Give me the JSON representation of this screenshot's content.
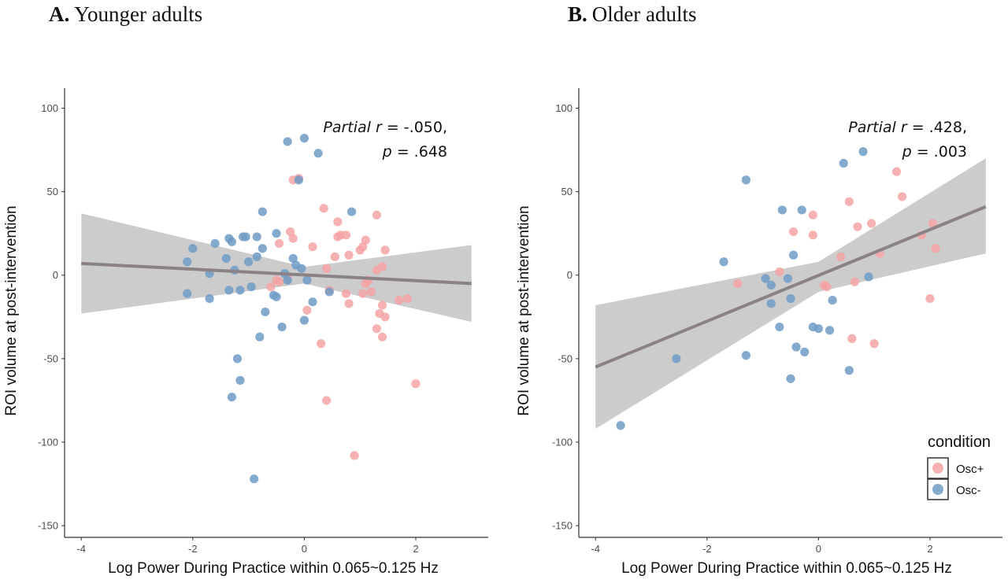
{
  "chart_data": [
    {
      "type": "scatter",
      "panel_letter": "A.",
      "title": "Younger adults",
      "xlabel": "Log Power During Practice within 0.065~0.125 Hz",
      "ylabel": "ROI volume at post-intervention",
      "xlim": [
        -4.3,
        3.3
      ],
      "ylim": [
        -157,
        112
      ],
      "xticks": [
        -4,
        -2,
        0,
        2
      ],
      "xtick_labels": [
        "-4",
        "-2",
        "0",
        "2"
      ],
      "yticks": [
        100,
        50,
        0,
        -50,
        -100,
        -150
      ],
      "ytick_labels": [
        "100",
        "50",
        "0",
        "-50",
        "-100",
        "-150"
      ],
      "grid": false,
      "annotation": {
        "stat_italic": "Partial",
        "r_italic": "r",
        "r_text": " = -.050,",
        "p_italic": "p",
        "p_text": " = .648"
      },
      "fit": {
        "x0": -4,
        "y0": 7,
        "x1": 3,
        "y1": -5,
        "ci_lower": [
          -23,
          -5,
          -28
        ],
        "ci_upper": [
          37,
          5,
          18
        ],
        "ci_x": [
          -4,
          0,
          3
        ]
      },
      "series": [
        {
          "name": "Osc+",
          "color": "#f4a3a5",
          "points": [
            [
              -0.2,
              57
            ],
            [
              -0.1,
              58
            ],
            [
              -0.25,
              26
            ],
            [
              -0.2,
              22
            ],
            [
              -0.45,
              19
            ],
            [
              0.35,
              40
            ],
            [
              0.6,
              32
            ],
            [
              0.6,
              23
            ],
            [
              0.65,
              24
            ],
            [
              0.75,
              24
            ],
            [
              0.8,
              12
            ],
            [
              0.55,
              11
            ],
            [
              1.0,
              15
            ],
            [
              1.1,
              21
            ],
            [
              1.05,
              17
            ],
            [
              1.3,
              36
            ],
            [
              1.45,
              15
            ],
            [
              1.3,
              3
            ],
            [
              1.4,
              5
            ],
            [
              1.2,
              -10
            ],
            [
              1.15,
              -3
            ],
            [
              1.1,
              -5
            ],
            [
              1.05,
              -11
            ],
            [
              0.75,
              -11
            ],
            [
              0.8,
              -17
            ],
            [
              1.4,
              -18
            ],
            [
              1.35,
              -23
            ],
            [
              1.45,
              -25
            ],
            [
              1.3,
              -32
            ],
            [
              1.4,
              -37
            ],
            [
              1.7,
              -15
            ],
            [
              1.85,
              -14
            ],
            [
              0.05,
              -21
            ],
            [
              0.3,
              -41
            ],
            [
              0.4,
              -75
            ],
            [
              0.9,
              -108
            ],
            [
              2.0,
              -65
            ],
            [
              -0.5,
              -3
            ],
            [
              -0.45,
              -4
            ],
            [
              -0.6,
              -7
            ],
            [
              0.45,
              -9
            ],
            [
              0.4,
              4
            ],
            [
              0.15,
              17
            ],
            [
              -0.3,
              -1
            ]
          ]
        },
        {
          "name": "Osc-",
          "color": "#6f9bc6",
          "points": [
            [
              -0.3,
              80
            ],
            [
              0.0,
              82
            ],
            [
              0.25,
              73
            ],
            [
              -0.1,
              57
            ],
            [
              0.85,
              38
            ],
            [
              -0.75,
              38
            ],
            [
              -1.35,
              22
            ],
            [
              -1.3,
              20
            ],
            [
              -1.1,
              23
            ],
            [
              -1.05,
              23
            ],
            [
              -0.85,
              23
            ],
            [
              -1.6,
              19
            ],
            [
              -2.0,
              16
            ],
            [
              -0.75,
              16
            ],
            [
              -0.5,
              25
            ],
            [
              -1.4,
              10
            ],
            [
              -1.0,
              8
            ],
            [
              -0.85,
              11
            ],
            [
              -0.2,
              10
            ],
            [
              -2.1,
              8
            ],
            [
              -1.25,
              3
            ],
            [
              -1.7,
              1
            ],
            [
              -0.35,
              1
            ],
            [
              -0.15,
              6
            ],
            [
              -0.05,
              4
            ],
            [
              0.05,
              -3
            ],
            [
              -1.35,
              -9
            ],
            [
              -1.15,
              -9
            ],
            [
              -0.95,
              -7
            ],
            [
              -2.1,
              -11
            ],
            [
              -1.7,
              -14
            ],
            [
              -0.55,
              -12
            ],
            [
              -0.5,
              -13
            ],
            [
              -0.7,
              -22
            ],
            [
              0.15,
              -16
            ],
            [
              0.0,
              -27
            ],
            [
              -0.4,
              -31
            ],
            [
              -0.8,
              -37
            ],
            [
              -1.2,
              -50
            ],
            [
              -1.15,
              -63
            ],
            [
              -1.3,
              -73
            ],
            [
              -0.9,
              -122
            ],
            [
              0.45,
              -10
            ],
            [
              -0.3,
              -3
            ]
          ]
        }
      ]
    },
    {
      "type": "scatter",
      "panel_letter": "B.",
      "title": "Older adults",
      "xlabel": "Log Power During Practice within 0.065~0.125 Hz",
      "ylabel": "ROI volume at post-intervention",
      "xlim": [
        -4.3,
        3.3
      ],
      "ylim": [
        -157,
        112
      ],
      "xticks": [
        -4,
        -2,
        0,
        2
      ],
      "xtick_labels": [
        "-4",
        "-2",
        "0",
        "2"
      ],
      "yticks": [
        100,
        50,
        0,
        -50,
        -100,
        -150
      ],
      "ytick_labels": [
        "100",
        "50",
        "0",
        "-50",
        "-100",
        "-150"
      ],
      "grid": false,
      "annotation": {
        "stat_italic": "Partial",
        "r_italic": "r",
        "r_text": " = .428,",
        "p_italic": "p",
        "p_text": " = .003"
      },
      "fit": {
        "x0": -4,
        "y0": -55,
        "x1": 3,
        "y1": 41,
        "ci_lower": [
          -92,
          -10,
          13
        ],
        "ci_upper": [
          -18,
          8,
          70
        ],
        "ci_x": [
          -4,
          0,
          3
        ]
      },
      "series": [
        {
          "name": "Osc+",
          "color": "#f4a3a5",
          "points": [
            [
              1.4,
              62
            ],
            [
              1.5,
              47
            ],
            [
              0.55,
              44
            ],
            [
              -0.1,
              36
            ],
            [
              0.95,
              31
            ],
            [
              2.05,
              31
            ],
            [
              0.7,
              29
            ],
            [
              -0.45,
              26
            ],
            [
              -0.1,
              24
            ],
            [
              1.85,
              24
            ],
            [
              2.1,
              16
            ],
            [
              1.1,
              13
            ],
            [
              0.4,
              11
            ],
            [
              -0.7,
              2
            ],
            [
              -1.45,
              -5
            ],
            [
              0.65,
              -4
            ],
            [
              0.1,
              -6
            ],
            [
              0.15,
              -7
            ],
            [
              0.6,
              -38
            ],
            [
              1.0,
              -41
            ],
            [
              2.0,
              -14
            ]
          ]
        },
        {
          "name": "Osc-",
          "color": "#6f9bc6",
          "points": [
            [
              -1.3,
              57
            ],
            [
              0.45,
              67
            ],
            [
              0.8,
              74
            ],
            [
              -0.65,
              39
            ],
            [
              -0.3,
              39
            ],
            [
              -0.45,
              12
            ],
            [
              -1.7,
              8
            ],
            [
              -0.95,
              -2
            ],
            [
              -0.85,
              -6
            ],
            [
              -0.55,
              -2
            ],
            [
              0.9,
              -1
            ],
            [
              -0.5,
              -14
            ],
            [
              -0.85,
              -17
            ],
            [
              0.25,
              -15
            ],
            [
              -0.7,
              -31
            ],
            [
              -0.1,
              -31
            ],
            [
              0.0,
              -32
            ],
            [
              0.2,
              -33
            ],
            [
              -0.4,
              -43
            ],
            [
              -0.25,
              -46
            ],
            [
              -1.3,
              -48
            ],
            [
              -2.55,
              -50
            ],
            [
              0.55,
              -57
            ],
            [
              -0.5,
              -62
            ],
            [
              -3.55,
              -90
            ]
          ]
        }
      ]
    }
  ],
  "legend": {
    "title": "condition",
    "items": [
      {
        "label": "Osc+",
        "color": "#f4a3a5"
      },
      {
        "label": "Osc-",
        "color": "#6f9bc6"
      }
    ]
  },
  "colors": {
    "fit_line": "#8a8285",
    "ci_band": "#cccccc",
    "axis": "#333333"
  }
}
